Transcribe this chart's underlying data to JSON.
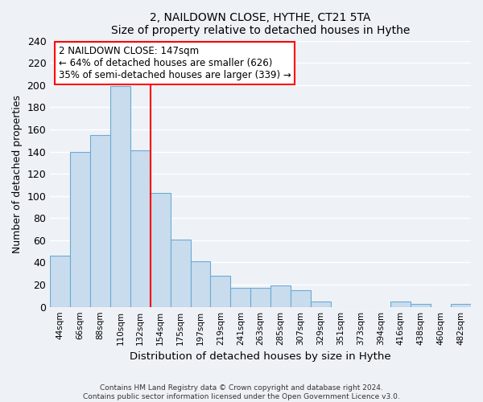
{
  "title": "2, NAILDOWN CLOSE, HYTHE, CT21 5TA",
  "subtitle": "Size of property relative to detached houses in Hythe",
  "xlabel": "Distribution of detached houses by size in Hythe",
  "ylabel": "Number of detached properties",
  "bar_labels": [
    "44sqm",
    "66sqm",
    "88sqm",
    "110sqm",
    "132sqm",
    "154sqm",
    "175sqm",
    "197sqm",
    "219sqm",
    "241sqm",
    "263sqm",
    "285sqm",
    "307sqm",
    "329sqm",
    "351sqm",
    "373sqm",
    "394sqm",
    "416sqm",
    "438sqm",
    "460sqm",
    "482sqm"
  ],
  "bar_heights": [
    46,
    140,
    155,
    199,
    141,
    103,
    61,
    41,
    28,
    17,
    17,
    19,
    15,
    5,
    0,
    0,
    0,
    5,
    3,
    0,
    3
  ],
  "bar_color": "#c9dced",
  "bar_edge_color": "#6aaad4",
  "vline_x": 5,
  "vline_color": "red",
  "annotation_title": "2 NAILDOWN CLOSE: 147sqm",
  "annotation_line1": "← 64% of detached houses are smaller (626)",
  "annotation_line2": "35% of semi-detached houses are larger (339) →",
  "ylim": [
    0,
    240
  ],
  "yticks": [
    0,
    20,
    40,
    60,
    80,
    100,
    120,
    140,
    160,
    180,
    200,
    220,
    240
  ],
  "footer1": "Contains HM Land Registry data © Crown copyright and database right 2024.",
  "footer2": "Contains public sector information licensed under the Open Government Licence v3.0.",
  "bg_color": "#eef2f7",
  "plot_bg_color": "#eef2f7",
  "grid_color": "#ffffff"
}
